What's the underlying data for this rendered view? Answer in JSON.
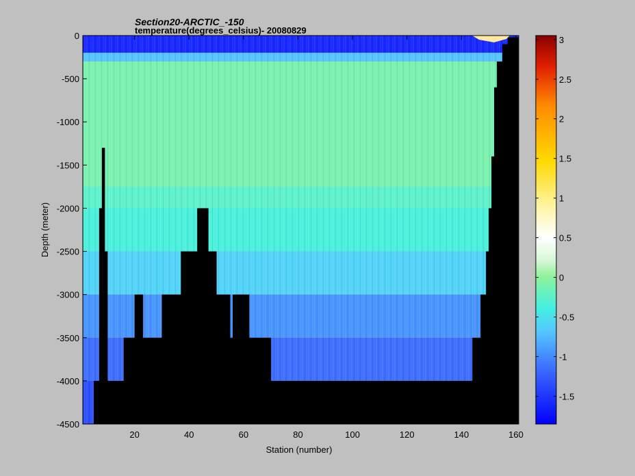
{
  "chart_data": {
    "type": "heatmap",
    "title": "Section20-ARCTIC_-150",
    "subtitle": "temperature(degrees_celsius)- 20080829",
    "xlabel": "Station (number)",
    "ylabel": "Depth (meter)",
    "xlim": [
      1,
      161
    ],
    "ylim": [
      -4500,
      0
    ],
    "xticks": [
      "20",
      "40",
      "60",
      "80",
      "100",
      "120",
      "140",
      "160"
    ],
    "xtick_values": [
      20,
      40,
      60,
      80,
      100,
      120,
      140,
      160
    ],
    "yticks": [
      "0",
      "-500",
      "-1000",
      "-1500",
      "-2000",
      "-2500",
      "-3000",
      "-3500",
      "-4000",
      "-4500"
    ],
    "ytick_values": [
      0,
      -500,
      -1000,
      -1500,
      -2000,
      -2500,
      -3000,
      -3500,
      -4000,
      -4500
    ],
    "colorbar": {
      "min": -1.85,
      "max": 3.05,
      "colormap": "jet-with-white-center",
      "ticks": [
        "3",
        "2.5",
        "2",
        "1.5",
        "1",
        "0.5",
        "0",
        "-0.5",
        "-1",
        "-1.5"
      ],
      "tick_values": [
        3,
        2.5,
        2,
        1.5,
        1,
        0.5,
        0,
        -0.5,
        -1,
        -1.5
      ]
    },
    "depth_layers": [
      {
        "top": 0,
        "bottom": -200,
        "temperature": -1.6
      },
      {
        "top": -200,
        "bottom": -300,
        "temperature": -0.7
      },
      {
        "top": -300,
        "bottom": -1750,
        "temperature": -0.1
      },
      {
        "top": -1750,
        "bottom": -2000,
        "temperature": -0.25
      },
      {
        "top": -2000,
        "bottom": -2500,
        "temperature": -0.35
      },
      {
        "top": -2500,
        "bottom": -3000,
        "temperature": -0.6
      },
      {
        "top": -3000,
        "bottom": -3500,
        "temperature": -0.95
      },
      {
        "top": -3500,
        "bottom": -4000,
        "temperature": -1.15
      },
      {
        "top": -4000,
        "bottom": -4500,
        "temperature": -1.35
      }
    ],
    "bottom_depth": [
      {
        "station_from": 1,
        "station_to": 5,
        "depth": -4500
      },
      {
        "station_from": 5,
        "station_to": 7,
        "depth": -4000
      },
      {
        "station_from": 7,
        "station_to": 8,
        "depth": -2000
      },
      {
        "station_from": 8,
        "station_to": 9,
        "depth": -1300
      },
      {
        "station_from": 9,
        "station_to": 10,
        "depth": -2500
      },
      {
        "station_from": 10,
        "station_to": 16,
        "depth": -4000
      },
      {
        "station_from": 16,
        "station_to": 20,
        "depth": -3500
      },
      {
        "station_from": 20,
        "station_to": 23,
        "depth": -3000
      },
      {
        "station_from": 23,
        "station_to": 30,
        "depth": -3500
      },
      {
        "station_from": 30,
        "station_to": 37,
        "depth": -3000
      },
      {
        "station_from": 37,
        "station_to": 43,
        "depth": -2500
      },
      {
        "station_from": 43,
        "station_to": 47,
        "depth": -2000
      },
      {
        "station_from": 47,
        "station_to": 50,
        "depth": -2500
      },
      {
        "station_from": 50,
        "station_to": 55,
        "depth": -3000
      },
      {
        "station_from": 55,
        "station_to": 56,
        "depth": -3500
      },
      {
        "station_from": 56,
        "station_to": 62,
        "depth": -3000
      },
      {
        "station_from": 62,
        "station_to": 70,
        "depth": -3500
      },
      {
        "station_from": 70,
        "station_to": 144,
        "depth": -4000
      },
      {
        "station_from": 144,
        "station_to": 147,
        "depth": -3500
      },
      {
        "station_from": 147,
        "station_to": 149,
        "depth": -3000
      },
      {
        "station_from": 149,
        "station_to": 150,
        "depth": -2500
      },
      {
        "station_from": 150,
        "station_to": 151,
        "depth": -2000
      },
      {
        "station_from": 151,
        "station_to": 152,
        "depth": -1400
      },
      {
        "station_from": 152,
        "station_to": 153,
        "depth": -600
      },
      {
        "station_from": 153,
        "station_to": 155,
        "depth": -300
      },
      {
        "station_from": 155,
        "station_to": 157,
        "depth": -100
      },
      {
        "station_from": 157,
        "station_to": 161,
        "depth": -20
      }
    ]
  }
}
